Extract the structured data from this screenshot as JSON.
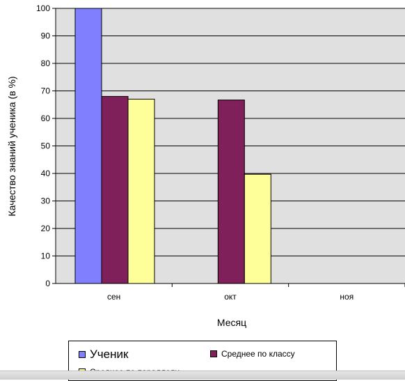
{
  "chart_data": {
    "type": "bar",
    "categories": [
      "сен",
      "окт",
      "ноя"
    ],
    "series": [
      {
        "name": "Ученик",
        "values": [
          100,
          null,
          null
        ],
        "color": "#8080ff"
      },
      {
        "name": "Среднее по классу",
        "values": [
          68,
          66.7,
          null
        ],
        "color": "#80205a"
      },
      {
        "name": "Среднее по параллели",
        "values": [
          67,
          39.7,
          null
        ],
        "color": "#ffff99"
      }
    ],
    "xlabel": "Месяц",
    "ylabel": "Качество знаний ученика (в %)",
    "ylim": [
      0,
      100
    ],
    "yticks": [
      "0",
      "10",
      "20",
      "30",
      "40",
      "50",
      "60",
      "70",
      "80",
      "90",
      "100"
    ],
    "grid": true,
    "plot_background": "#e0e0e0",
    "legend_position": "bottom"
  }
}
